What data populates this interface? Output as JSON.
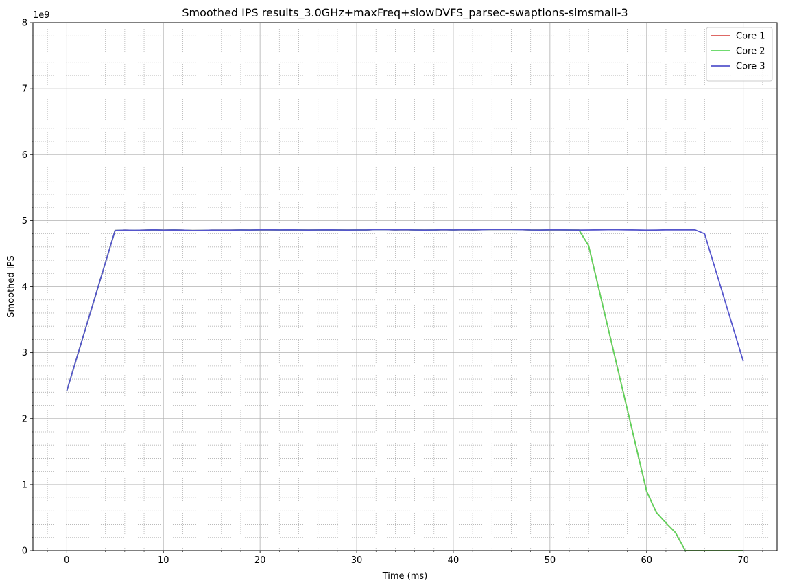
{
  "chart_data": {
    "type": "line",
    "title": "Smoothed IPS results_3.0GHz+maxFreq+slowDVFS_parsec-swaptions-simsmall-3",
    "xlabel": "Time (ms)",
    "ylabel": "Smoothed IPS",
    "y_offset_label": "1e9",
    "y_scale": 1000000000,
    "xlim": [
      -3.5,
      73.5
    ],
    "ylim": [
      0,
      8000000000
    ],
    "x_ticks": [
      0,
      10,
      20,
      30,
      40,
      50,
      60,
      70
    ],
    "y_ticks": [
      0,
      1000000000,
      2000000000,
      3000000000,
      4000000000,
      5000000000,
      6000000000,
      7000000000,
      8000000000
    ],
    "y_tick_labels": [
      "0",
      "1",
      "2",
      "3",
      "4",
      "5",
      "6",
      "7",
      "8"
    ],
    "grid": "major solid, minor dotted",
    "legend_position": "top-right",
    "series": [
      {
        "name": "Core 1",
        "color": "#d9534f",
        "x": [
          0,
          5,
          6,
          7,
          8,
          9,
          10,
          11,
          12,
          13,
          14,
          15,
          16,
          17,
          18,
          19,
          20,
          21,
          22,
          23,
          24,
          25,
          26,
          27,
          28,
          29,
          30,
          31,
          32,
          33,
          34,
          35,
          36,
          37,
          38,
          39,
          40,
          41,
          42,
          43,
          44,
          45,
          46,
          47,
          48,
          49,
          50,
          51,
          52,
          53,
          54,
          55,
          56,
          57,
          58,
          59,
          60,
          61,
          62,
          63,
          64,
          65,
          66,
          67,
          68,
          69,
          70
        ],
        "y": [
          2420000000,
          4850000000,
          4855000000,
          4853000000,
          4855000000,
          4860000000,
          4855000000,
          4858000000,
          4855000000,
          4850000000,
          4852000000,
          4855000000,
          4855000000,
          4856000000,
          4858000000,
          4857000000,
          4860000000,
          4860000000,
          4858000000,
          4860000000,
          4858000000,
          4857000000,
          4858000000,
          4860000000,
          4858000000,
          4857000000,
          4858000000,
          4858000000,
          4865000000,
          4864000000,
          4860000000,
          4862000000,
          4858000000,
          4857000000,
          4858000000,
          4862000000,
          4858000000,
          4862000000,
          4860000000,
          4863000000,
          4866000000,
          4865000000,
          4865000000,
          4863000000,
          4858000000,
          4857000000,
          4860000000,
          4860000000,
          4858000000,
          4857000000,
          4620000000,
          4000000000,
          3380000000,
          2760000000,
          2140000000,
          1520000000,
          900000000,
          580000000,
          420000000,
          270000000,
          0,
          0,
          0,
          0,
          0,
          0,
          0
        ]
      },
      {
        "name": "Core 2",
        "color": "#5cd65c",
        "x": [
          0,
          5,
          6,
          7,
          8,
          9,
          10,
          11,
          12,
          13,
          14,
          15,
          16,
          17,
          18,
          19,
          20,
          21,
          22,
          23,
          24,
          25,
          26,
          27,
          28,
          29,
          30,
          31,
          32,
          33,
          34,
          35,
          36,
          37,
          38,
          39,
          40,
          41,
          42,
          43,
          44,
          45,
          46,
          47,
          48,
          49,
          50,
          51,
          52,
          53,
          54,
          55,
          56,
          57,
          58,
          59,
          60,
          61,
          62,
          63,
          64,
          65,
          66,
          67,
          68,
          69,
          70
        ],
        "y": [
          2420000000,
          4850000000,
          4855000000,
          4853000000,
          4855000000,
          4860000000,
          4855000000,
          4858000000,
          4855000000,
          4850000000,
          4852000000,
          4855000000,
          4855000000,
          4856000000,
          4858000000,
          4857000000,
          4860000000,
          4860000000,
          4858000000,
          4860000000,
          4858000000,
          4857000000,
          4858000000,
          4860000000,
          4858000000,
          4857000000,
          4858000000,
          4858000000,
          4865000000,
          4864000000,
          4860000000,
          4862000000,
          4858000000,
          4857000000,
          4858000000,
          4862000000,
          4858000000,
          4862000000,
          4860000000,
          4863000000,
          4866000000,
          4865000000,
          4865000000,
          4863000000,
          4858000000,
          4857000000,
          4860000000,
          4860000000,
          4858000000,
          4857000000,
          4620000000,
          4000000000,
          3380000000,
          2760000000,
          2140000000,
          1520000000,
          900000000,
          580000000,
          420000000,
          270000000,
          0,
          0,
          0,
          0,
          0,
          0,
          0
        ]
      },
      {
        "name": "Core 3",
        "color": "#5555cc",
        "x": [
          0,
          5,
          6,
          7,
          8,
          9,
          10,
          11,
          12,
          13,
          14,
          15,
          16,
          17,
          18,
          19,
          20,
          21,
          22,
          23,
          24,
          25,
          26,
          27,
          28,
          29,
          30,
          31,
          32,
          33,
          34,
          35,
          36,
          37,
          38,
          39,
          40,
          41,
          42,
          43,
          44,
          45,
          46,
          47,
          48,
          49,
          50,
          51,
          52,
          53,
          54,
          55,
          56,
          57,
          58,
          59,
          60,
          61,
          62,
          63,
          64,
          65,
          66,
          70
        ],
        "y": [
          2420000000,
          4850000000,
          4855000000,
          4853000000,
          4855000000,
          4860000000,
          4855000000,
          4858000000,
          4855000000,
          4850000000,
          4852000000,
          4855000000,
          4855000000,
          4856000000,
          4858000000,
          4857000000,
          4860000000,
          4860000000,
          4858000000,
          4860000000,
          4858000000,
          4857000000,
          4858000000,
          4860000000,
          4858000000,
          4857000000,
          4858000000,
          4858000000,
          4865000000,
          4864000000,
          4860000000,
          4862000000,
          4858000000,
          4857000000,
          4858000000,
          4862000000,
          4858000000,
          4862000000,
          4860000000,
          4863000000,
          4866000000,
          4865000000,
          4865000000,
          4863000000,
          4858000000,
          4857000000,
          4860000000,
          4860000000,
          4858000000,
          4857000000,
          4858000000,
          4860000000,
          4863000000,
          4862000000,
          4860000000,
          4858000000,
          4855000000,
          4857000000,
          4860000000,
          4860000000,
          4860000000,
          4860000000,
          4800000000,
          2870000000
        ]
      }
    ]
  }
}
